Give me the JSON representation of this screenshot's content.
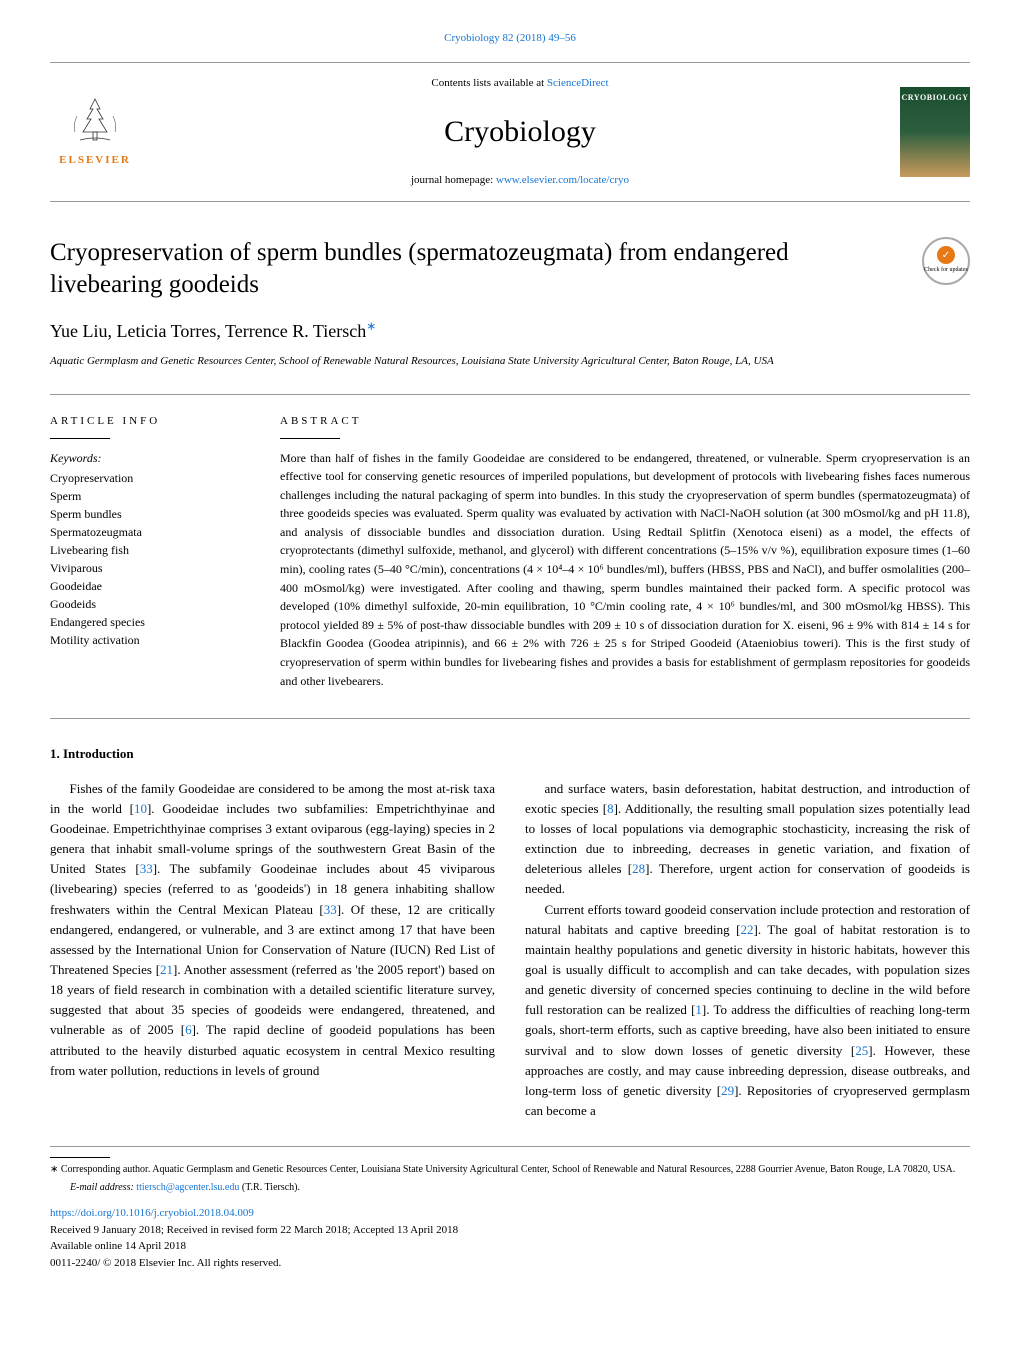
{
  "header": {
    "citation": "Cryobiology 82 (2018) 49–56",
    "citation_link_color": "#1976d2",
    "contents_prefix": "Contents lists available at ",
    "contents_link": "ScienceDirect",
    "journal": "Cryobiology",
    "homepage_prefix": "journal homepage: ",
    "homepage_link": "www.elsevier.com/locate/cryo",
    "publisher": "ELSEVIER",
    "cover_label": "CRYOBIOLOGY",
    "check_updates": "Check for updates"
  },
  "article": {
    "title": "Cryopreservation of sperm bundles (spermatozeugmata) from endangered livebearing goodeids",
    "authors": "Yue Liu, Leticia Torres, Terrence R. Tiersch",
    "corr_symbol": "∗",
    "affiliation": "Aquatic Germplasm and Genetic Resources Center, School of Renewable Natural Resources, Louisiana State University Agricultural Center, Baton Rouge, LA, USA"
  },
  "info": {
    "heading": "ARTICLE INFO",
    "keywords_label": "Keywords:",
    "keywords": "Cryopreservation\nSperm\nSperm bundles\nSpermatozeugmata\nLivebearing fish\nViviparous\nGoodeidae\nGoodeids\nEndangered species\nMotility activation"
  },
  "abstract": {
    "heading": "ABSTRACT",
    "text": "More than half of fishes in the family Goodeidae are considered to be endangered, threatened, or vulnerable. Sperm cryopreservation is an effective tool for conserving genetic resources of imperiled populations, but development of protocols with livebearing fishes faces numerous challenges including the natural packaging of sperm into bundles. In this study the cryopreservation of sperm bundles (spermatozeugmata) of three goodeids species was evaluated. Sperm quality was evaluated by activation with NaCl-NaOH solution (at 300 mOsmol/kg and pH 11.8), and analysis of dissociable bundles and dissociation duration. Using Redtail Splitfin (Xenotoca eiseni) as a model, the effects of cryoprotectants (dimethyl sulfoxide, methanol, and glycerol) with different concentrations (5–15% v/v %), equilibration exposure times (1–60 min), cooling rates (5–40 °C/min), concentrations (4 × 10⁴–4 × 10⁶ bundles/ml), buffers (HBSS, PBS and NaCl), and buffer osmolalities (200–400 mOsmol/kg) were investigated. After cooling and thawing, sperm bundles maintained their packed form. A specific protocol was developed (10% dimethyl sulfoxide, 20-min equilibration, 10 °C/min cooling rate, 4 × 10⁶ bundles/ml, and 300 mOsmol/kg HBSS). This protocol yielded 89 ± 5% of post-thaw dissociable bundles with 209 ± 10 s of dissociation duration for X. eiseni, 96 ± 9% with 814 ± 14 s for Blackfin Goodea (Goodea atripinnis), and 66 ± 2% with 726 ± 25 s for Striped Goodeid (Ataeniobius toweri). This is the first study of cryopreservation of sperm within bundles for livebearing fishes and provides a basis for establishment of germplasm repositories for goodeids and other livebearers."
  },
  "section": {
    "heading": "1. Introduction"
  },
  "body": {
    "col1_p1": "Fishes of the family Goodeidae are considered to be among the most at-risk taxa in the world [10]. Goodeidae includes two subfamilies: Empetrichthyinae and Goodeinae. Empetrichthyinae comprises 3 extant oviparous (egg-laying) species in 2 genera that inhabit small-volume springs of the southwestern Great Basin of the United States [33]. The subfamily Goodeinae includes about 45 viviparous (livebearing) species (referred to as 'goodeids') in 18 genera inhabiting shallow freshwaters within the Central Mexican Plateau [33]. Of these, 12 are critically endangered, endangered, or vulnerable, and 3 are extinct among 17 that have been assessed by the International Union for Conservation of Nature (IUCN) Red List of Threatened Species [21]. Another assessment (referred as 'the 2005 report') based on 18 years of field research in combination with a detailed scientific literature survey, suggested that about 35 species of goodeids were endangered, threatened, and vulnerable as of 2005 [6]. The rapid decline of goodeid populations has been attributed to the heavily disturbed aquatic ecosystem in central Mexico resulting from water pollution, reductions in levels of ground",
    "col2_p1": "and surface waters, basin deforestation, habitat destruction, and introduction of exotic species [8]. Additionally, the resulting small population sizes potentially lead to losses of local populations via demographic stochasticity, increasing the risk of extinction due to inbreeding, decreases in genetic variation, and fixation of deleterious alleles [28]. Therefore, urgent action for conservation of goodeids is needed.",
    "col2_p2": "Current efforts toward goodeid conservation include protection and restoration of natural habitats and captive breeding [22]. The goal of habitat restoration is to maintain healthy populations and genetic diversity in historic habitats, however this goal is usually difficult to accomplish and can take decades, with population sizes and genetic diversity of concerned species continuing to decline in the wild before full restoration can be realized [1]. To address the difficulties of reaching long-term goals, short-term efforts, such as captive breeding, have also been initiated to ensure survival and to slow down losses of genetic diversity [25]. However, these approaches are costly, and may cause inbreeding depression, disease outbreaks, and long-term loss of genetic diversity [29]. Repositories of cryopreserved germplasm can become a"
  },
  "footer": {
    "corr_note": "∗ Corresponding author. Aquatic Germplasm and Genetic Resources Center, Louisiana State University Agricultural Center, School of Renewable and Natural Resources, 2288 Gourrier Avenue, Baton Rouge, LA 70820, USA.",
    "email_label": "E-mail address: ",
    "email": "ttiersch@agcenter.lsu.edu",
    "email_suffix": " (T.R. Tiersch).",
    "doi": "https://doi.org/10.1016/j.cryobiol.2018.04.009",
    "received": "Received 9 January 2018; Received in revised form 22 March 2018; Accepted 13 April 2018",
    "available": "Available online 14 April 2018",
    "copyright": "0011-2240/ © 2018 Elsevier Inc. All rights reserved."
  },
  "colors": {
    "link": "#1976d2",
    "elsevier_orange": "#e67817",
    "rule_gray": "#999999",
    "text": "#000000"
  }
}
